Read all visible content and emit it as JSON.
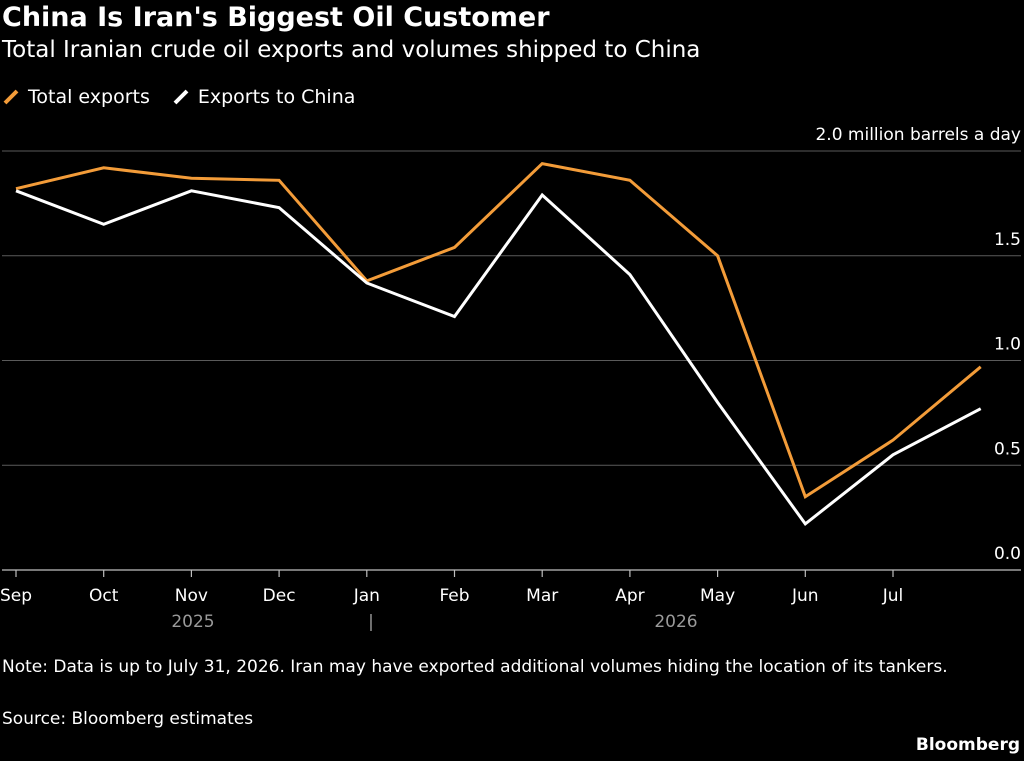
{
  "title": "China Is Iran's Biggest Oil Customer",
  "subtitle": "Total Iranian crude oil exports and volumes shipped to China",
  "legend": [
    {
      "label": "Total exports",
      "color": "#f39c39"
    },
    {
      "label": "Exports to China",
      "color": "#ffffff"
    }
  ],
  "note": "Note: Data is up to July 31, 2026. Iran may have exported additional volumes hiding the location of its tankers.",
  "source": "Source: Bloomberg estimates",
  "brand": "Bloomberg",
  "chart_data": {
    "type": "line",
    "x_ticks": [
      "Sep",
      "Oct",
      "Nov",
      "Dec",
      "Jan",
      "Feb",
      "Mar",
      "Apr",
      "May",
      "Jun",
      "Jul"
    ],
    "x_groups": [
      {
        "label": "2025"
      },
      {
        "label": "|"
      },
      {
        "label": "2026"
      }
    ],
    "x": [
      "2025-09",
      "2025-10",
      "2025-11",
      "2025-12",
      "2026-01",
      "2026-02",
      "2026-03",
      "2026-04",
      "2026-05",
      "2026-06",
      "2026-07",
      "2026-08"
    ],
    "y_ticks": [
      "2.0 million barrels a day",
      "1.5",
      "1.0",
      "0.5",
      "0.0"
    ],
    "y_tick_values": [
      2.0,
      1.5,
      1.0,
      0.5,
      0.0
    ],
    "ylim": [
      0,
      2.0
    ],
    "y_axis_side": "right",
    "grid": true,
    "legend_position": "top-left",
    "series": [
      {
        "name": "Total exports",
        "color": "#f39c39",
        "values": [
          1.82,
          1.92,
          1.87,
          1.86,
          1.38,
          1.54,
          1.94,
          1.86,
          1.5,
          0.35,
          0.62,
          0.97
        ]
      },
      {
        "name": "Exports to China",
        "color": "#ffffff",
        "values": [
          1.81,
          1.65,
          1.81,
          1.73,
          1.37,
          1.21,
          1.79,
          1.41,
          0.8,
          0.22,
          0.55,
          0.77
        ]
      }
    ]
  }
}
